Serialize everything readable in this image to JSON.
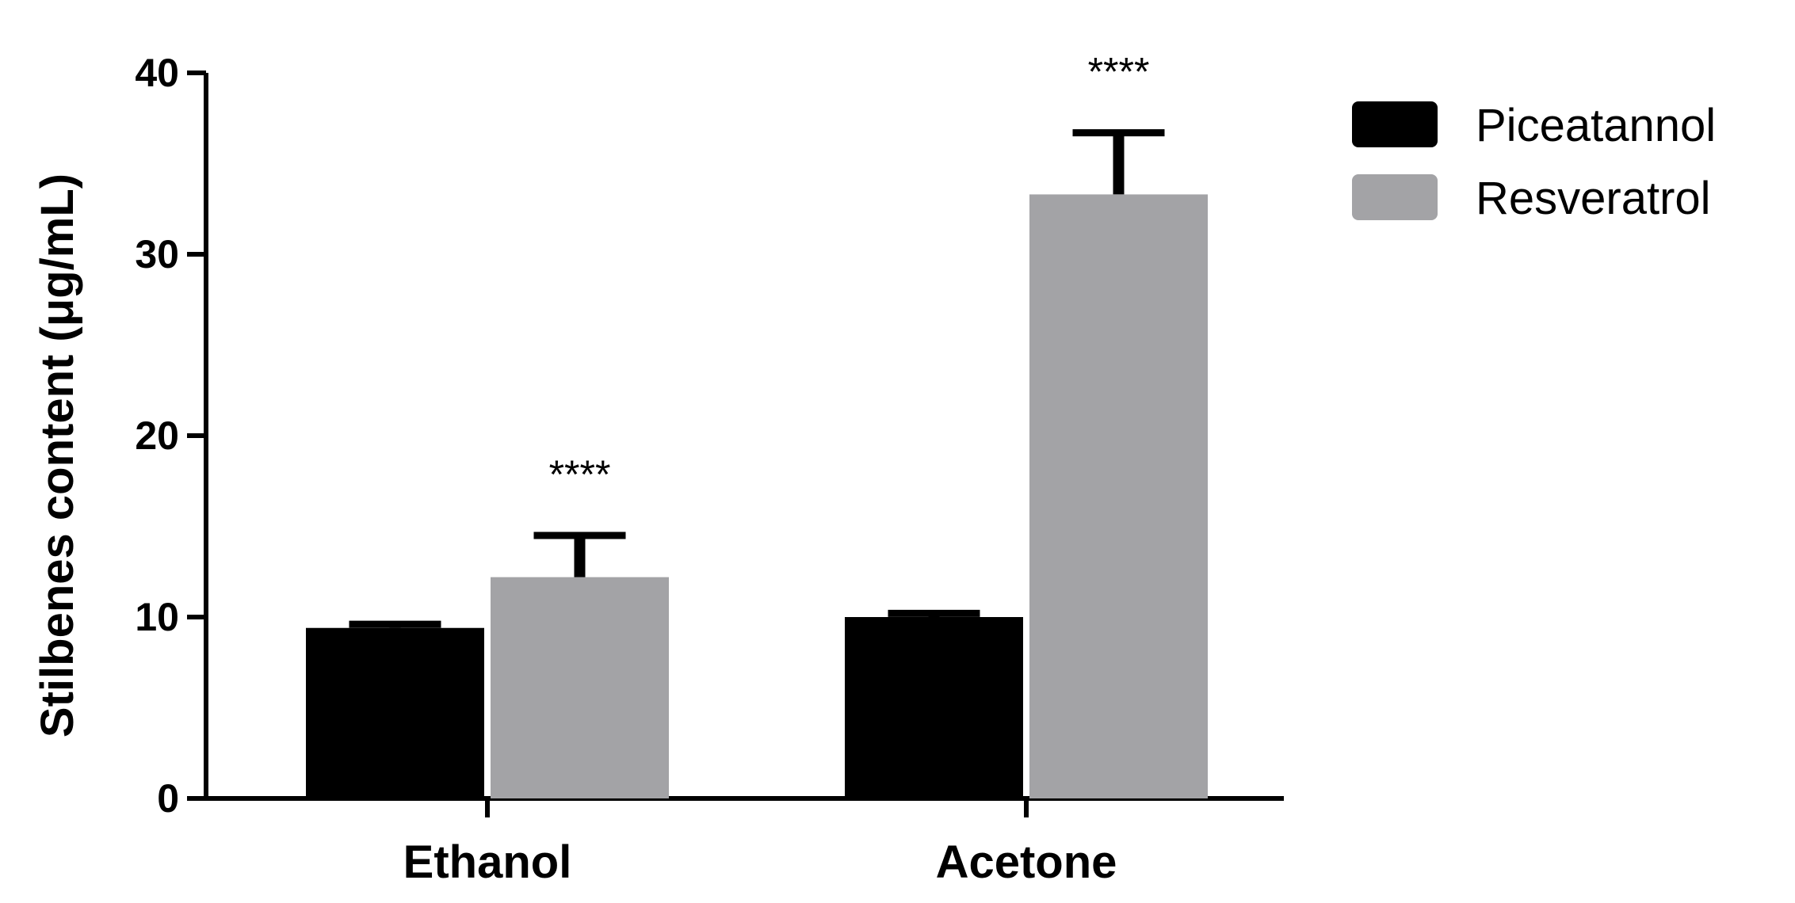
{
  "chart_data": {
    "type": "bar",
    "title": "",
    "xlabel": "",
    "ylabel": "Stilbenes content (μg/mL)",
    "ylim": [
      0,
      40
    ],
    "yticks": [
      0,
      10,
      20,
      30,
      40
    ],
    "ytick_labels": [
      "0",
      "10",
      "20",
      "30",
      "40"
    ],
    "categories": [
      "Ethanol",
      "Acetone"
    ],
    "series": [
      {
        "name": "Piceatannol",
        "color": "#000000",
        "values": [
          9.4,
          10.0
        ],
        "errors": [
          0.2,
          0.2
        ],
        "annotations": [
          "",
          ""
        ]
      },
      {
        "name": "Resveratrol",
        "color": "#a3a3a6",
        "values": [
          12.2,
          33.3
        ],
        "errors": [
          2.3,
          3.4
        ],
        "annotations": [
          "****",
          "****"
        ]
      }
    ],
    "legend_position": "top-right",
    "grid": false
  }
}
